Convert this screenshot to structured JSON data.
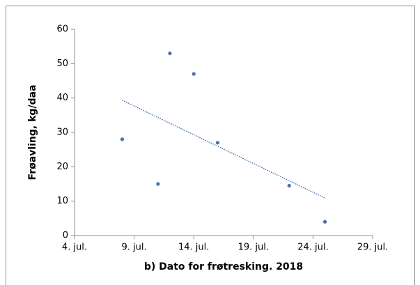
{
  "chart_data": {
    "type": "scatter",
    "x_label": "b) Dato for frøtresking. 2018",
    "y_label": "Frøavling, kg/daa",
    "series": [
      {
        "color": "#4a6fb0",
        "x": [
          8,
          11,
          12,
          14,
          16,
          22,
          25
        ],
        "values": [
          28,
          15,
          53,
          47,
          27,
          14.5,
          4
        ]
      }
    ],
    "trendline": "linear",
    "trendline_color": "#2f5c9a",
    "xlim": [
      4,
      29
    ],
    "xticks": [
      {
        "value": 4,
        "label": "4. jul."
      },
      {
        "value": 9,
        "label": "9. jul."
      },
      {
        "value": 14,
        "label": "14. jul."
      },
      {
        "value": 19,
        "label": "19. jul."
      },
      {
        "value": 24,
        "label": "24. jul."
      },
      {
        "value": 29,
        "label": "29. jul."
      }
    ],
    "ylim": [
      0,
      60
    ],
    "yticks": [
      0,
      10,
      20,
      30,
      40,
      50,
      60
    ]
  }
}
